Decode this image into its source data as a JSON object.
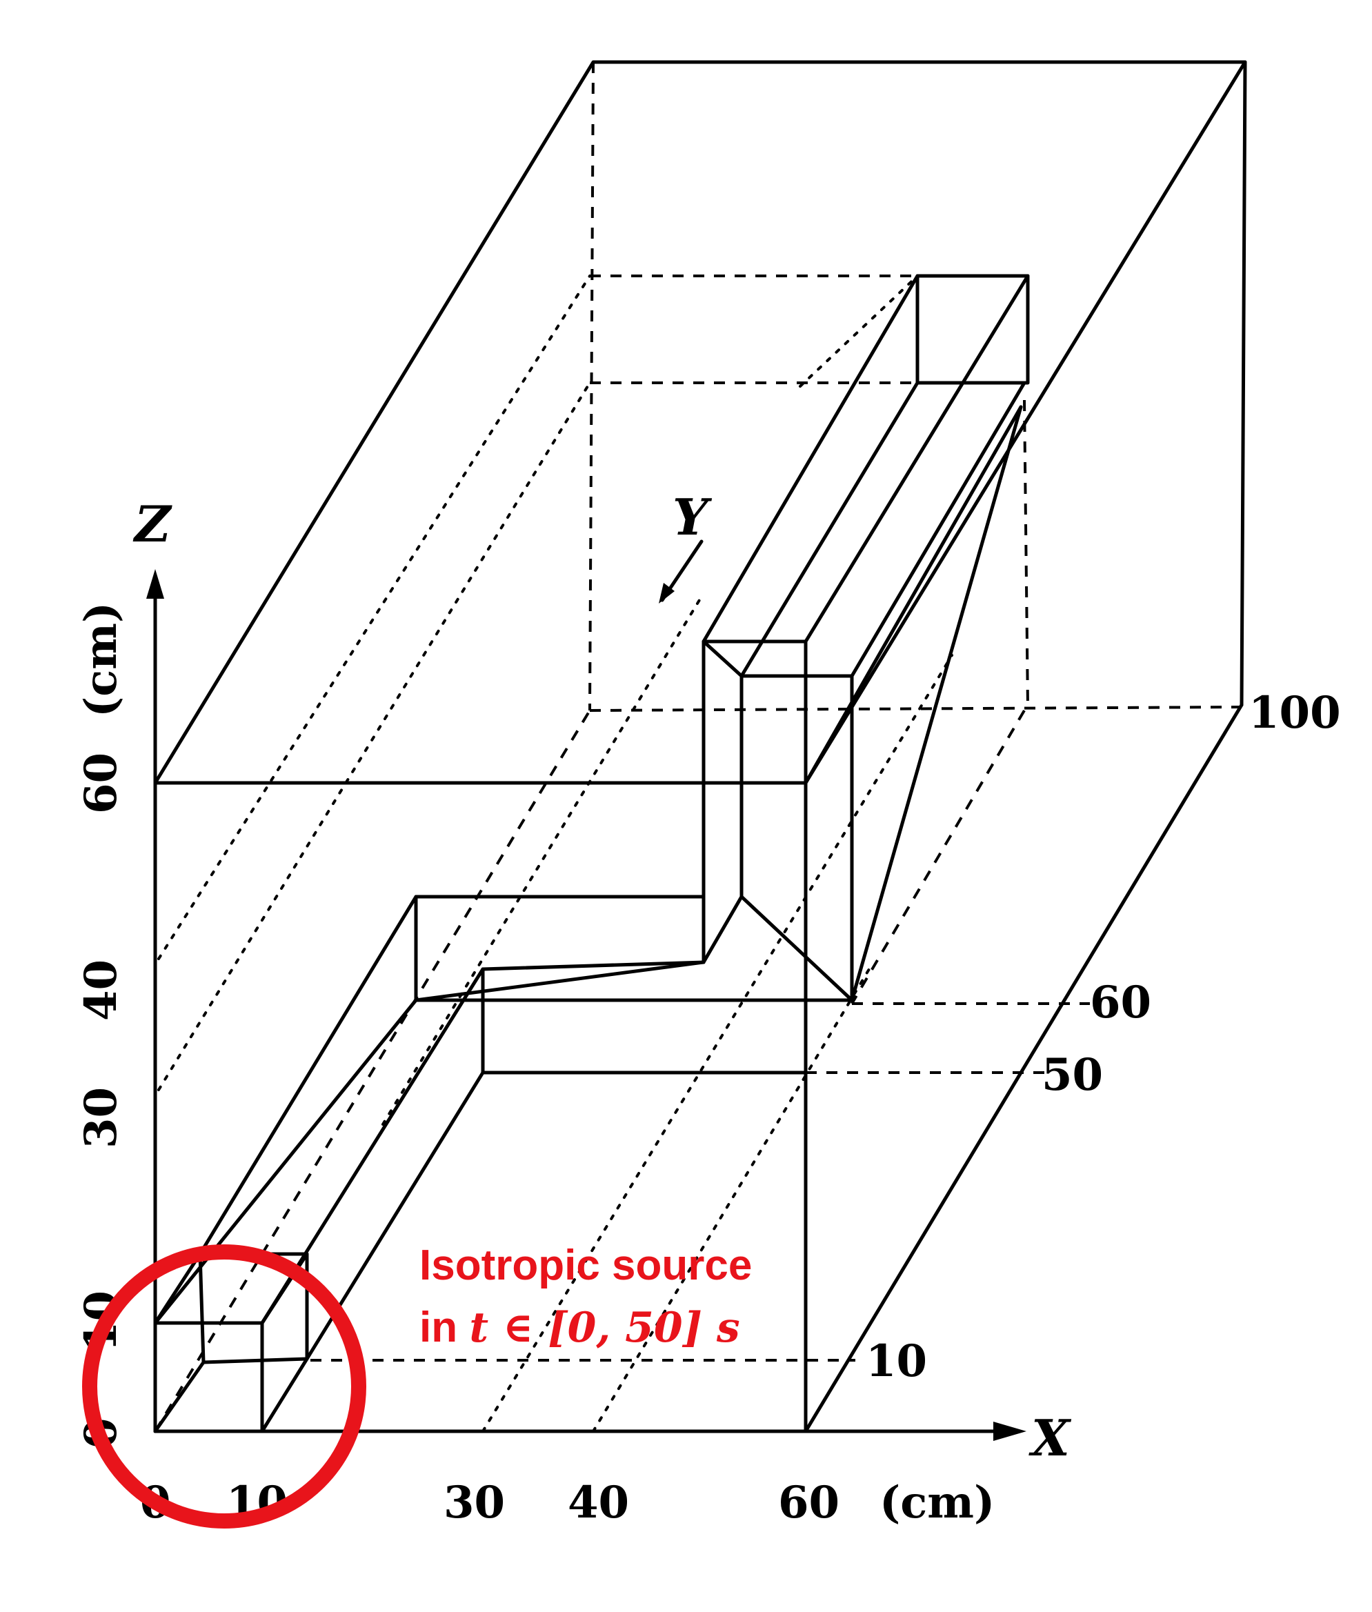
{
  "axes": {
    "x_label": "X",
    "y_label": "Y",
    "z_label": "Z",
    "x_unit": "(cm)",
    "z_unit": "(cm)"
  },
  "x_ticks": [
    "0",
    "10",
    "30",
    "40",
    "60"
  ],
  "z_ticks": [
    "0",
    "10",
    "30",
    "40",
    "60"
  ],
  "y_ticks": [
    "10",
    "50",
    "60",
    "100"
  ],
  "annotation": {
    "line1": "Isotropic source",
    "line2_prefix": "in ",
    "line2_math": "t ∈ [0, 50] s",
    "color": "#e8141b"
  }
}
